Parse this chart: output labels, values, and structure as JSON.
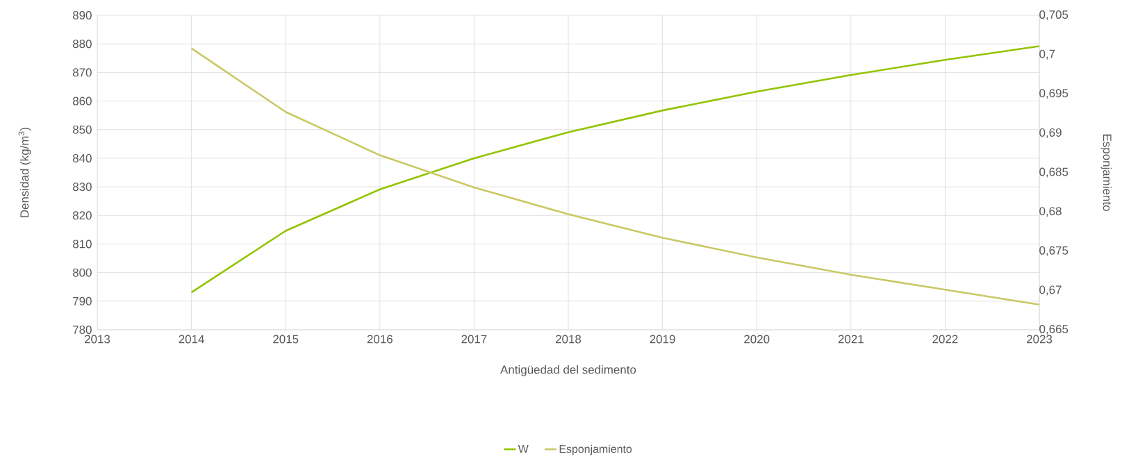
{
  "chart_data": {
    "type": "line",
    "xlabel": "Antigüedad del sedimento",
    "ylabel": "Densidad (kg/m$^{3}$)",
    "y2label": "Esponjamiento",
    "x": [
      2014,
      2015,
      2016,
      2017,
      2018,
      2019,
      2020,
      2021,
      2022,
      2023
    ],
    "series": [
      {
        "name": "W",
        "color": "#92c400",
        "values": [
          793.1,
          814.6,
          829.1,
          840.0,
          849.1,
          856.7,
          863.3,
          869.1,
          874.4,
          879.2
        ]
      },
      {
        "name": "Esponjamiento",
        "color": "#c9c864",
        "axis": "y2",
        "values": [
          0.7008,
          0.6927,
          0.6872,
          0.6831,
          0.6797,
          0.6767,
          0.6742,
          0.672,
          0.6701,
          0.6682
        ]
      }
    ],
    "xlim": [
      2013,
      2023
    ],
    "xticks": [
      2013,
      2014,
      2015,
      2016,
      2017,
      2018,
      2019,
      2020,
      2021,
      2022,
      2023
    ],
    "ylim": [
      780,
      890
    ],
    "yticks": [
      780,
      790,
      800,
      810,
      820,
      830,
      840,
      850,
      860,
      870,
      880,
      890
    ],
    "y2lim": [
      0.665,
      0.705
    ],
    "y2ticks": [
      {
        "value": 0.665,
        "label": "0,665"
      },
      {
        "value": 0.67,
        "label": "0,67"
      },
      {
        "value": 0.675,
        "label": "0,675"
      },
      {
        "value": 0.68,
        "label": "0,68"
      },
      {
        "value": 0.685,
        "label": "0,685"
      },
      {
        "value": 0.69,
        "label": "0,69"
      },
      {
        "value": 0.695,
        "label": "0,695"
      },
      {
        "value": 0.7,
        "label": "0,7"
      },
      {
        "value": 0.705,
        "label": "0,705"
      }
    ],
    "grid": true,
    "legend": "bottom",
    "marker": "none",
    "line_style": "solid"
  }
}
